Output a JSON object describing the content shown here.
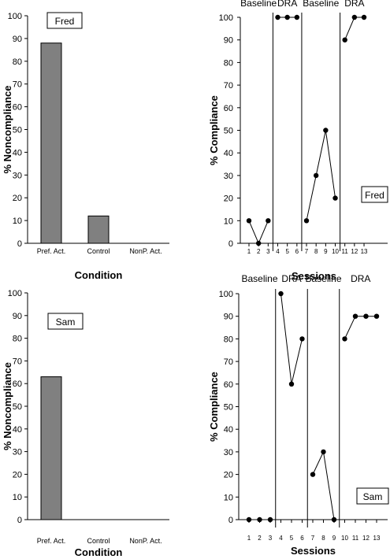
{
  "chart_data": [
    {
      "type": "bar",
      "participant_label": "Fred",
      "ylabel": "% Noncompliance",
      "xlabel": "Condition",
      "ylim": [
        0,
        100
      ],
      "yticks": [
        0,
        10,
        20,
        30,
        40,
        50,
        60,
        70,
        80,
        90,
        100
      ],
      "categories": [
        "Pref.  Act.",
        "Control",
        "NonP. Act."
      ],
      "values": [
        88,
        12,
        0
      ],
      "bar_color": "#808080"
    },
    {
      "type": "line",
      "participant_label": "Fred",
      "ylabel": "% Compliance",
      "xlabel": "Sessions",
      "ylim": [
        0,
        100
      ],
      "xlim": [
        1,
        13
      ],
      "yticks": [
        0,
        10,
        20,
        30,
        40,
        50,
        60,
        70,
        80,
        90,
        100
      ],
      "xticks": [
        1,
        2,
        3,
        4,
        5,
        6,
        7,
        8,
        9,
        10,
        11,
        12,
        13
      ],
      "phases": [
        {
          "label": "Baseline",
          "x": [
            1,
            2,
            3
          ],
          "values": [
            10,
            0,
            10
          ]
        },
        {
          "label": "DRA",
          "x": [
            4,
            5,
            6
          ],
          "values": [
            100,
            100,
            100
          ]
        },
        {
          "label": "Baseline",
          "x": [
            7,
            8,
            9,
            10
          ],
          "values": [
            10,
            30,
            50,
            20
          ]
        },
        {
          "label": "DRA",
          "x": [
            11,
            12,
            13
          ],
          "values": [
            90,
            100,
            100
          ]
        }
      ],
      "phase_change_lines_after_session": [
        3.5,
        6.5,
        10.5
      ]
    },
    {
      "type": "bar",
      "participant_label": "Sam",
      "ylabel": "% Noncompliance",
      "xlabel": "Condition",
      "ylim": [
        0,
        100
      ],
      "yticks": [
        0,
        10,
        20,
        30,
        40,
        50,
        60,
        70,
        80,
        90,
        100
      ],
      "categories": [
        "Pref. Act.",
        "Control",
        "NonP. Act."
      ],
      "values": [
        63,
        0,
        0
      ],
      "bar_color": "#808080"
    },
    {
      "type": "line",
      "participant_label": "Sam",
      "ylabel": "% Compliance",
      "xlabel": "Sessions",
      "ylim": [
        0,
        100
      ],
      "xlim": [
        1,
        13
      ],
      "yticks": [
        0,
        10,
        20,
        30,
        40,
        50,
        60,
        70,
        80,
        90,
        100
      ],
      "xticks": [
        1,
        2,
        3,
        4,
        5,
        6,
        7,
        8,
        9,
        10,
        11,
        12,
        13
      ],
      "phases": [
        {
          "label": "Baseline",
          "x": [
            1,
            2,
            3
          ],
          "values": [
            0,
            0,
            0
          ]
        },
        {
          "label": "DRA",
          "x": [
            4,
            5,
            6
          ],
          "values": [
            100,
            60,
            80
          ]
        },
        {
          "label": "Baseline",
          "x": [
            7,
            8,
            9
          ],
          "values": [
            20,
            30,
            0
          ]
        },
        {
          "label": "DRA",
          "x": [
            10,
            11,
            12,
            13
          ],
          "values": [
            80,
            90,
            90,
            90
          ]
        }
      ],
      "phase_change_lines_after_session": [
        3.5,
        6.5,
        9.5
      ]
    }
  ]
}
